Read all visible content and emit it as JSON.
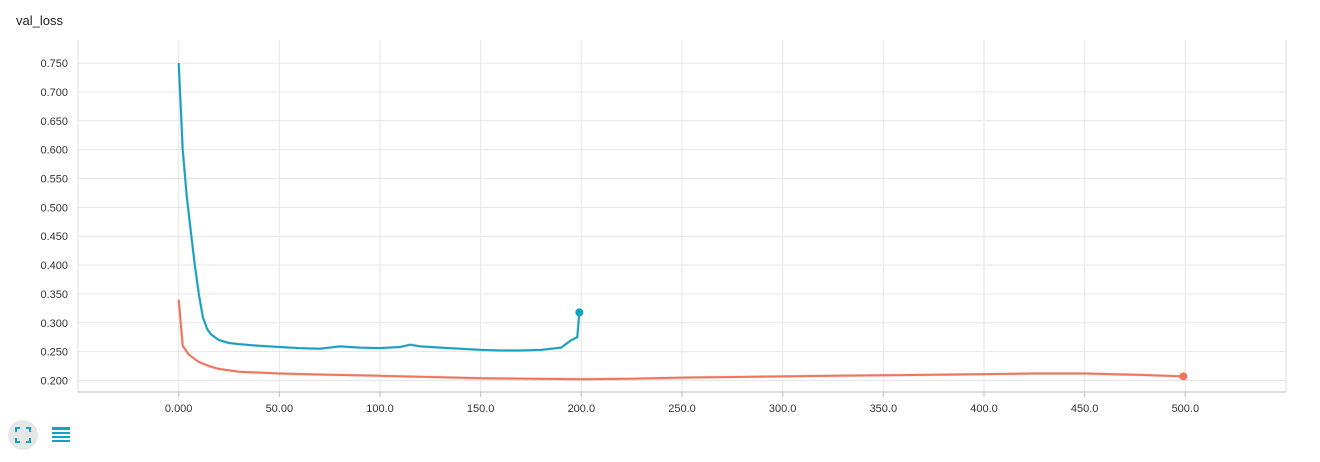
{
  "chart_data": {
    "type": "line",
    "title": "val_loss",
    "xlabel": "",
    "ylabel": "",
    "xlim": [
      -50,
      550
    ],
    "ylim": [
      0.18,
      0.79
    ],
    "x_ticks": [
      "0.000",
      "50.00",
      "100.0",
      "150.0",
      "200.0",
      "250.0",
      "300.0",
      "350.0",
      "400.0",
      "450.0",
      "500.0"
    ],
    "x_tick_values": [
      0,
      50,
      100,
      150,
      200,
      250,
      300,
      350,
      400,
      450,
      500
    ],
    "y_ticks": [
      "0.200",
      "0.250",
      "0.300",
      "0.350",
      "0.400",
      "0.450",
      "0.500",
      "0.550",
      "0.600",
      "0.650",
      "0.700",
      "0.750"
    ],
    "y_tick_values": [
      0.2,
      0.25,
      0.3,
      0.35,
      0.4,
      0.45,
      0.5,
      0.55,
      0.6,
      0.65,
      0.7,
      0.75
    ],
    "grid": true,
    "series": [
      {
        "color": "#12a3c4",
        "end_marker": true,
        "x": [
          0,
          2,
          4,
          6,
          8,
          10,
          12,
          14,
          16,
          20,
          25,
          30,
          40,
          50,
          60,
          70,
          80,
          90,
          100,
          110,
          115,
          120,
          130,
          140,
          150,
          160,
          170,
          180,
          190,
          195,
          198,
          199
        ],
        "y": [
          0.75,
          0.6,
          0.52,
          0.46,
          0.4,
          0.35,
          0.31,
          0.29,
          0.28,
          0.27,
          0.265,
          0.263,
          0.26,
          0.258,
          0.256,
          0.255,
          0.259,
          0.257,
          0.256,
          0.258,
          0.262,
          0.259,
          0.257,
          0.255,
          0.253,
          0.252,
          0.252,
          0.253,
          0.257,
          0.27,
          0.275,
          0.318
        ]
      },
      {
        "color": "#f4735c",
        "end_marker": true,
        "x": [
          0,
          2,
          5,
          10,
          15,
          20,
          30,
          50,
          75,
          100,
          125,
          150,
          175,
          200,
          225,
          250,
          275,
          300,
          325,
          350,
          375,
          400,
          425,
          450,
          475,
          499
        ],
        "y": [
          0.34,
          0.26,
          0.245,
          0.232,
          0.225,
          0.22,
          0.215,
          0.212,
          0.21,
          0.208,
          0.206,
          0.204,
          0.203,
          0.202,
          0.203,
          0.205,
          0.206,
          0.207,
          0.208,
          0.209,
          0.21,
          0.211,
          0.212,
          0.212,
          0.21,
          0.207
        ]
      }
    ]
  },
  "toolbar": {
    "fit_icon": "fit-domain-icon",
    "data_icon": "data-table-icon",
    "accent": "#12a3c4"
  }
}
